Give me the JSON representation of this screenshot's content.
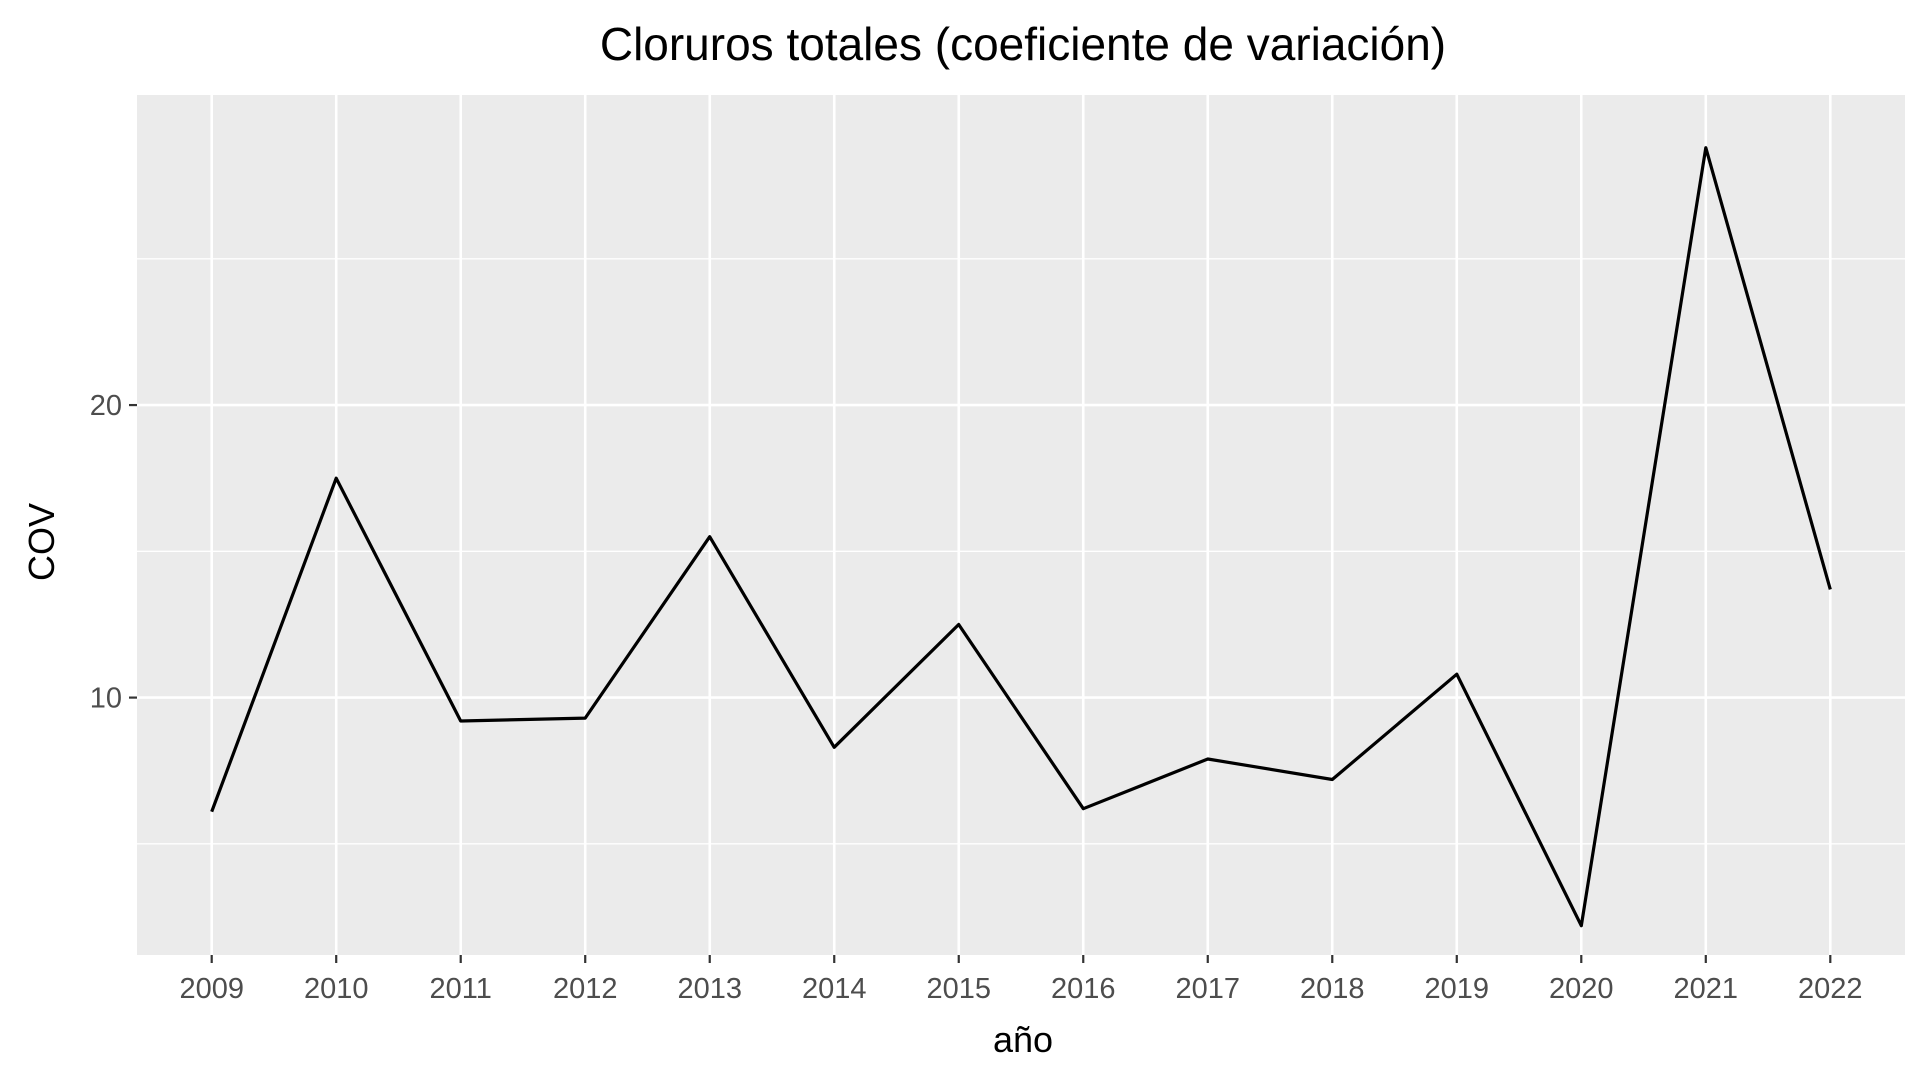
{
  "chart_data": {
    "type": "line",
    "title": "Cloruros totales (coeficiente de variación)",
    "xlabel": "año",
    "ylabel": "COV",
    "x": [
      2009,
      2010,
      2011,
      2012,
      2013,
      2014,
      2015,
      2016,
      2017,
      2018,
      2019,
      2020,
      2021,
      2022
    ],
    "x_tick_labels": [
      "2009",
      "2010",
      "2011",
      "2012",
      "2013",
      "2014",
      "2015",
      "2016",
      "2017",
      "2018",
      "2019",
      "2020",
      "2021",
      "2022"
    ],
    "y_ticks": [
      10,
      20
    ],
    "y_tick_labels": [
      "10",
      "20"
    ],
    "y_minor_ticks": [
      5,
      15,
      25
    ],
    "ylim": [
      1.2,
      30.6
    ],
    "xlim": [
      2008.4,
      2022.6
    ],
    "grid": true,
    "series": [
      {
        "values": [
          6.1,
          17.5,
          9.2,
          9.3,
          15.5,
          8.3,
          12.5,
          6.2,
          7.9,
          7.2,
          10.8,
          2.2,
          28.8,
          13.7
        ],
        "color": "#000000"
      }
    ],
    "colors": {
      "panel_background": "#ebebeb",
      "grid": "#ffffff",
      "line": "#000000",
      "tick_label": "#4d4d4d"
    }
  }
}
